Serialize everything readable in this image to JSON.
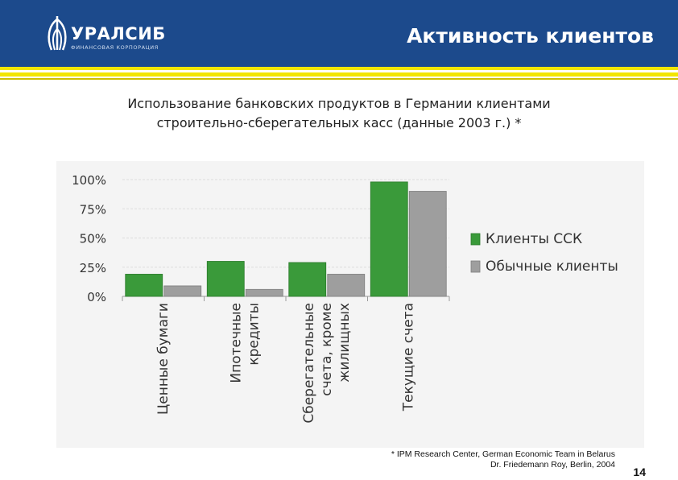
{
  "header": {
    "logo_text": "УРАЛСИБ",
    "logo_sub": "ФИНАНСОВАЯ КОРПОРАЦИЯ",
    "title": "Активность клиентов",
    "bg_color": "#1c4a8c",
    "stripe_color": "#f2e600"
  },
  "subtitle": {
    "line1": "Использование банковских продуктов в Германии клиентами",
    "line2": "строительно-сберегательных касс (данные 2003 г.) *"
  },
  "chart_data": {
    "type": "bar",
    "title": "",
    "categories": [
      [
        "Ценные бумаги"
      ],
      [
        "Ипотечные",
        "кредиты"
      ],
      [
        "Сберегательные",
        "счета, кроме",
        "жилищных"
      ],
      [
        "Текущие счета"
      ]
    ],
    "series": [
      {
        "name": "Клиенты ССК",
        "values": [
          19,
          30,
          29,
          98
        ],
        "color": "#3a9a3a"
      },
      {
        "name": "Обычные клиенты",
        "values": [
          9,
          6,
          19,
          90
        ],
        "color": "#9e9e9e"
      }
    ],
    "y_ticks": [
      "0%",
      "25%",
      "50%",
      "75%",
      "100%"
    ],
    "ylim": [
      0,
      100
    ],
    "grid": true,
    "legend_position": "right"
  },
  "footnote": {
    "line1": "* IPM Research Center, German Economic Team in Belarus",
    "line2": "Dr. Friedemann Roy, Berlin, 2004"
  },
  "page_number": "14"
}
